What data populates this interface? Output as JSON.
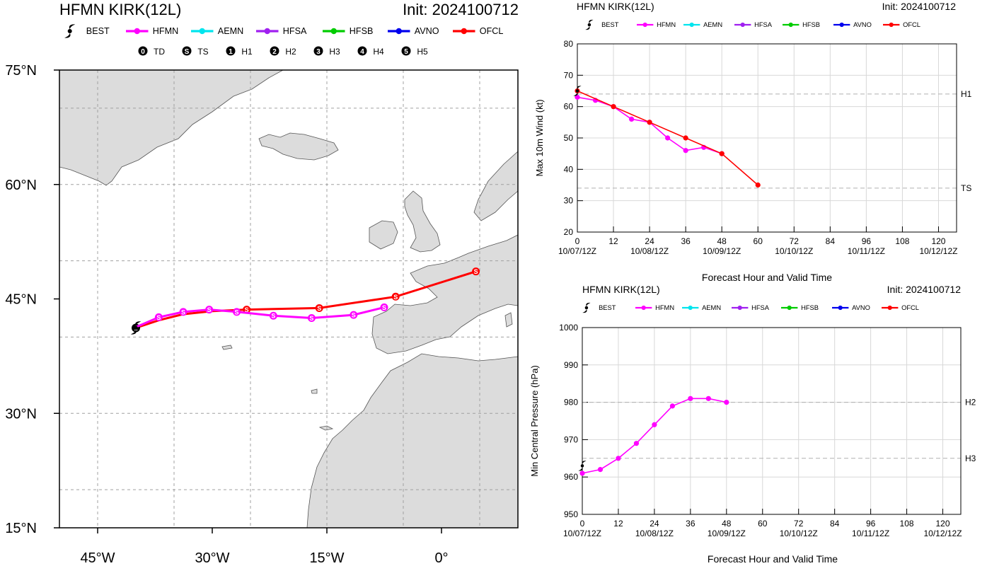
{
  "colors": {
    "BEST": "#000000",
    "HFMN": "#ff00ff",
    "AEMN": "#00e5ee",
    "HFSA": "#a020f0",
    "HFSB": "#00cc00",
    "AVNO": "#0000ee",
    "OFCL": "#ff0000",
    "land": "#dcdcdc",
    "grid": "#a0a0a0"
  },
  "legend": [
    "BEST",
    "HFMN",
    "AEMN",
    "HFSA",
    "HFSB",
    "AVNO",
    "OFCL"
  ],
  "intensity_legend": [
    {
      "sym": "0",
      "label": "TD"
    },
    {
      "sym": "S",
      "label": "TS"
    },
    {
      "sym": "1",
      "label": "H1"
    },
    {
      "sym": "2",
      "label": "H2"
    },
    {
      "sym": "3",
      "label": "H3"
    },
    {
      "sym": "4",
      "label": "H4"
    },
    {
      "sym": "5",
      "label": "H5"
    }
  ],
  "chart_data": [
    {
      "type": "map",
      "title": "HFMN KIRK(12L)",
      "init": "Init: 2024100712",
      "lon_ticks": [
        {
          "v": -45,
          "l": "45°W"
        },
        {
          "v": -30,
          "l": "30°W"
        },
        {
          "v": -15,
          "l": "15°W"
        },
        {
          "v": 0,
          "l": "0°"
        }
      ],
      "lat_ticks": [
        {
          "v": 75,
          "l": "75°N"
        },
        {
          "v": 60,
          "l": "60°N"
        },
        {
          "v": 45,
          "l": "45°N"
        },
        {
          "v": 30,
          "l": "30°N"
        },
        {
          "v": 15,
          "l": "15°N"
        }
      ],
      "lon_range": [
        -50,
        10
      ],
      "lat_range": [
        15,
        75
      ],
      "grid": true,
      "tracks": [
        {
          "name": "OFCL",
          "points": [
            [
              -40.0,
              41.2,
              "1"
            ],
            [
              -37.0,
              42.2,
              ""
            ],
            [
              -33.8,
              43.0,
              ""
            ],
            [
              -30.0,
              43.4,
              ""
            ],
            [
              -25.5,
              43.6,
              "S"
            ],
            [
              -16.0,
              43.8,
              "S"
            ],
            [
              -6.0,
              45.3,
              "S"
            ],
            [
              4.5,
              48.6,
              "S"
            ]
          ]
        },
        {
          "name": "HFMN",
          "points": [
            [
              -40.0,
              41.3,
              ""
            ],
            [
              -37.0,
              42.6,
              "S"
            ],
            [
              -33.8,
              43.3,
              "S"
            ],
            [
              -30.4,
              43.6,
              "S"
            ],
            [
              -26.8,
              43.3,
              "S"
            ],
            [
              -22.0,
              42.8,
              "S"
            ],
            [
              -17.0,
              42.5,
              "S"
            ],
            [
              -11.5,
              42.9,
              "S"
            ],
            [
              -7.5,
              43.9,
              "S"
            ]
          ]
        },
        {
          "name": "BEST",
          "points": [
            [
              -40.0,
              41.2,
              ""
            ]
          ]
        }
      ]
    },
    {
      "type": "line",
      "title": "HFMN KIRK(12L)",
      "init": "Init: 2024100712",
      "xlabel": "Forecast Hour and Valid Time",
      "ylabel": "Max 10m Wind (kt)",
      "xlim": [
        0,
        126
      ],
      "ylim": [
        20,
        80
      ],
      "xticks": [
        0,
        12,
        24,
        36,
        48,
        60,
        72,
        84,
        96,
        108,
        120
      ],
      "yticks": [
        20,
        30,
        40,
        50,
        60,
        70,
        80
      ],
      "valid_times": [
        {
          "x": 0,
          "l": "10/07/12Z"
        },
        {
          "x": 24,
          "l": "10/08/12Z"
        },
        {
          "x": 48,
          "l": "10/09/12Z"
        },
        {
          "x": 72,
          "l": "10/10/12Z"
        },
        {
          "x": 96,
          "l": "10/11/12Z"
        },
        {
          "x": 120,
          "l": "10/12/12Z"
        }
      ],
      "ref_lines": [
        {
          "y": 64,
          "label": "H1"
        },
        {
          "y": 34,
          "label": "TS"
        }
      ],
      "series": [
        {
          "name": "HFMN",
          "x": [
            0,
            6,
            12,
            18,
            24,
            30,
            36,
            42,
            48
          ],
          "y": [
            63,
            62,
            60,
            56,
            55,
            50,
            46,
            47,
            45
          ]
        },
        {
          "name": "OFCL",
          "x": [
            0,
            12,
            24,
            36,
            48,
            60
          ],
          "y": [
            65,
            60,
            55,
            50,
            45,
            35
          ]
        },
        {
          "name": "BEST",
          "x": [
            0
          ],
          "y": [
            65
          ]
        }
      ]
    },
    {
      "type": "line",
      "title": "HFMN KIRK(12L)",
      "init": "Init: 2024100712",
      "xlabel": "Forecast Hour and Valid Time",
      "ylabel": "Min Central Pressure (hPa)",
      "xlim": [
        0,
        126
      ],
      "ylim": [
        950,
        1000
      ],
      "xticks": [
        0,
        12,
        24,
        36,
        48,
        60,
        72,
        84,
        96,
        108,
        120
      ],
      "yticks": [
        950,
        960,
        970,
        980,
        990,
        1000
      ],
      "valid_times": [
        {
          "x": 0,
          "l": "10/07/12Z"
        },
        {
          "x": 24,
          "l": "10/08/12Z"
        },
        {
          "x": 48,
          "l": "10/09/12Z"
        },
        {
          "x": 72,
          "l": "10/10/12Z"
        },
        {
          "x": 96,
          "l": "10/11/12Z"
        },
        {
          "x": 120,
          "l": "10/12/12Z"
        }
      ],
      "ref_lines": [
        {
          "y": 980,
          "label": "H2"
        },
        {
          "y": 965,
          "label": "H3"
        }
      ],
      "series": [
        {
          "name": "HFMN",
          "x": [
            0,
            6,
            12,
            18,
            24,
            30,
            36,
            42,
            48
          ],
          "y": [
            961,
            962,
            965,
            969,
            974,
            979,
            981,
            981,
            980
          ]
        },
        {
          "name": "BEST",
          "x": [
            0
          ],
          "y": [
            963
          ]
        }
      ]
    }
  ]
}
